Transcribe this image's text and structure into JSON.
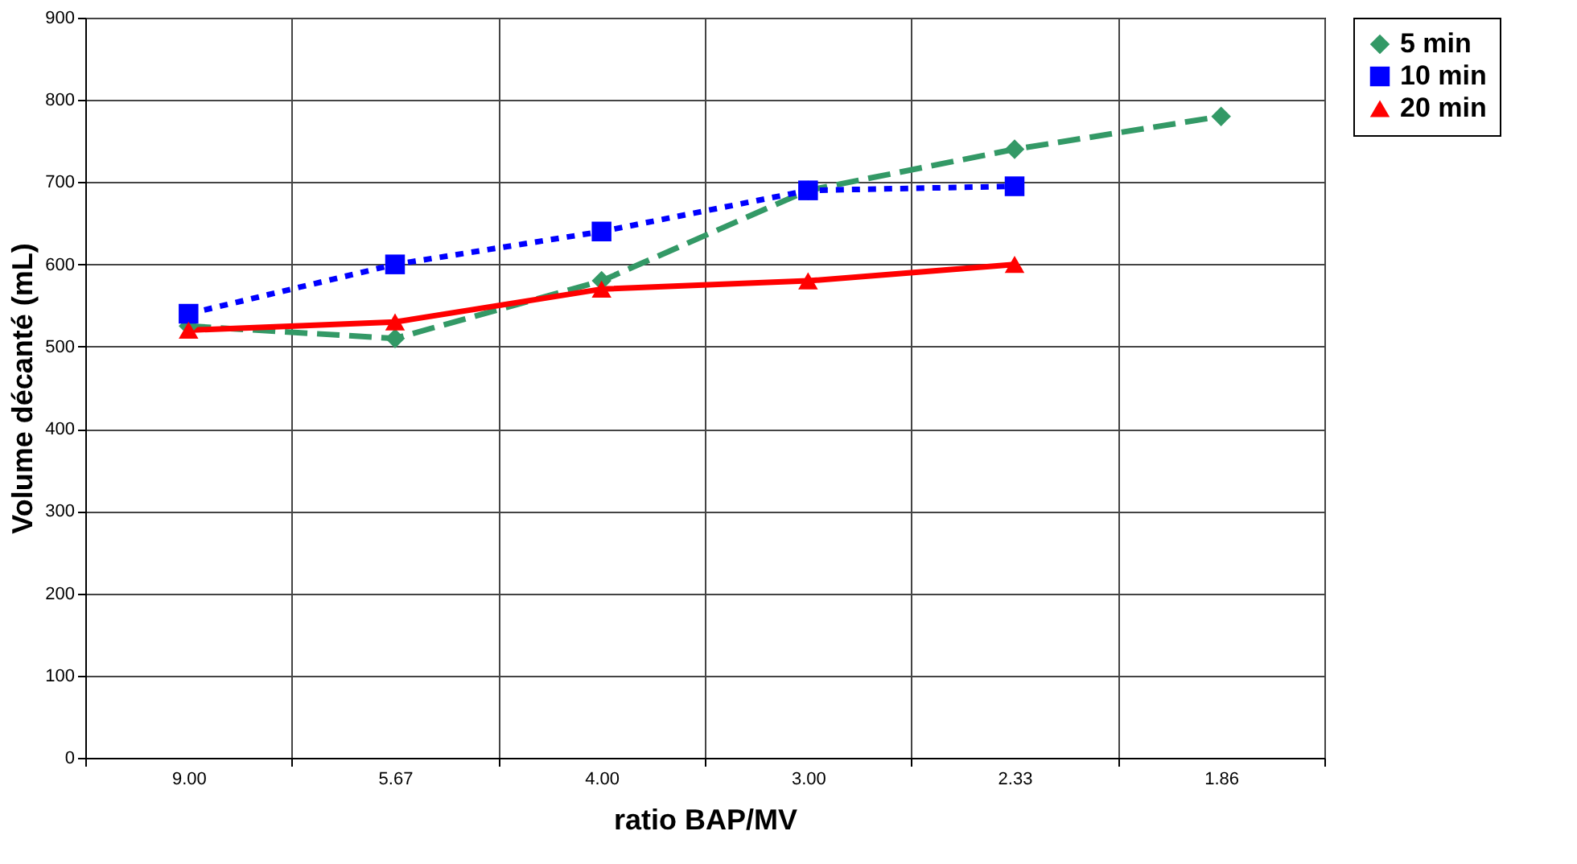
{
  "chart_data": {
    "type": "line",
    "xlabel": "ratio BAP/MV",
    "ylabel": "Volume décanté (mL)",
    "categories": [
      "9.00",
      "5.67",
      "4.00",
      "3.00",
      "2.33",
      "1.86"
    ],
    "series": [
      {
        "name": "5 min",
        "color": "#339966",
        "marker": "diamond",
        "line_style": "dashed",
        "values": [
          525,
          510,
          580,
          690,
          740,
          780
        ]
      },
      {
        "name": "10 min",
        "color": "#0000ff",
        "marker": "square",
        "line_style": "dotted",
        "values": [
          540,
          600,
          640,
          690,
          695,
          null
        ]
      },
      {
        "name": "20 min",
        "color": "#ff0000",
        "marker": "triangle",
        "line_style": "solid",
        "values": [
          520,
          530,
          570,
          580,
          600,
          null
        ]
      }
    ],
    "ylim": [
      0,
      900
    ],
    "yticks": [
      0,
      100,
      200,
      300,
      400,
      500,
      600,
      700,
      800,
      900
    ],
    "grid": true,
    "legend": "right"
  }
}
